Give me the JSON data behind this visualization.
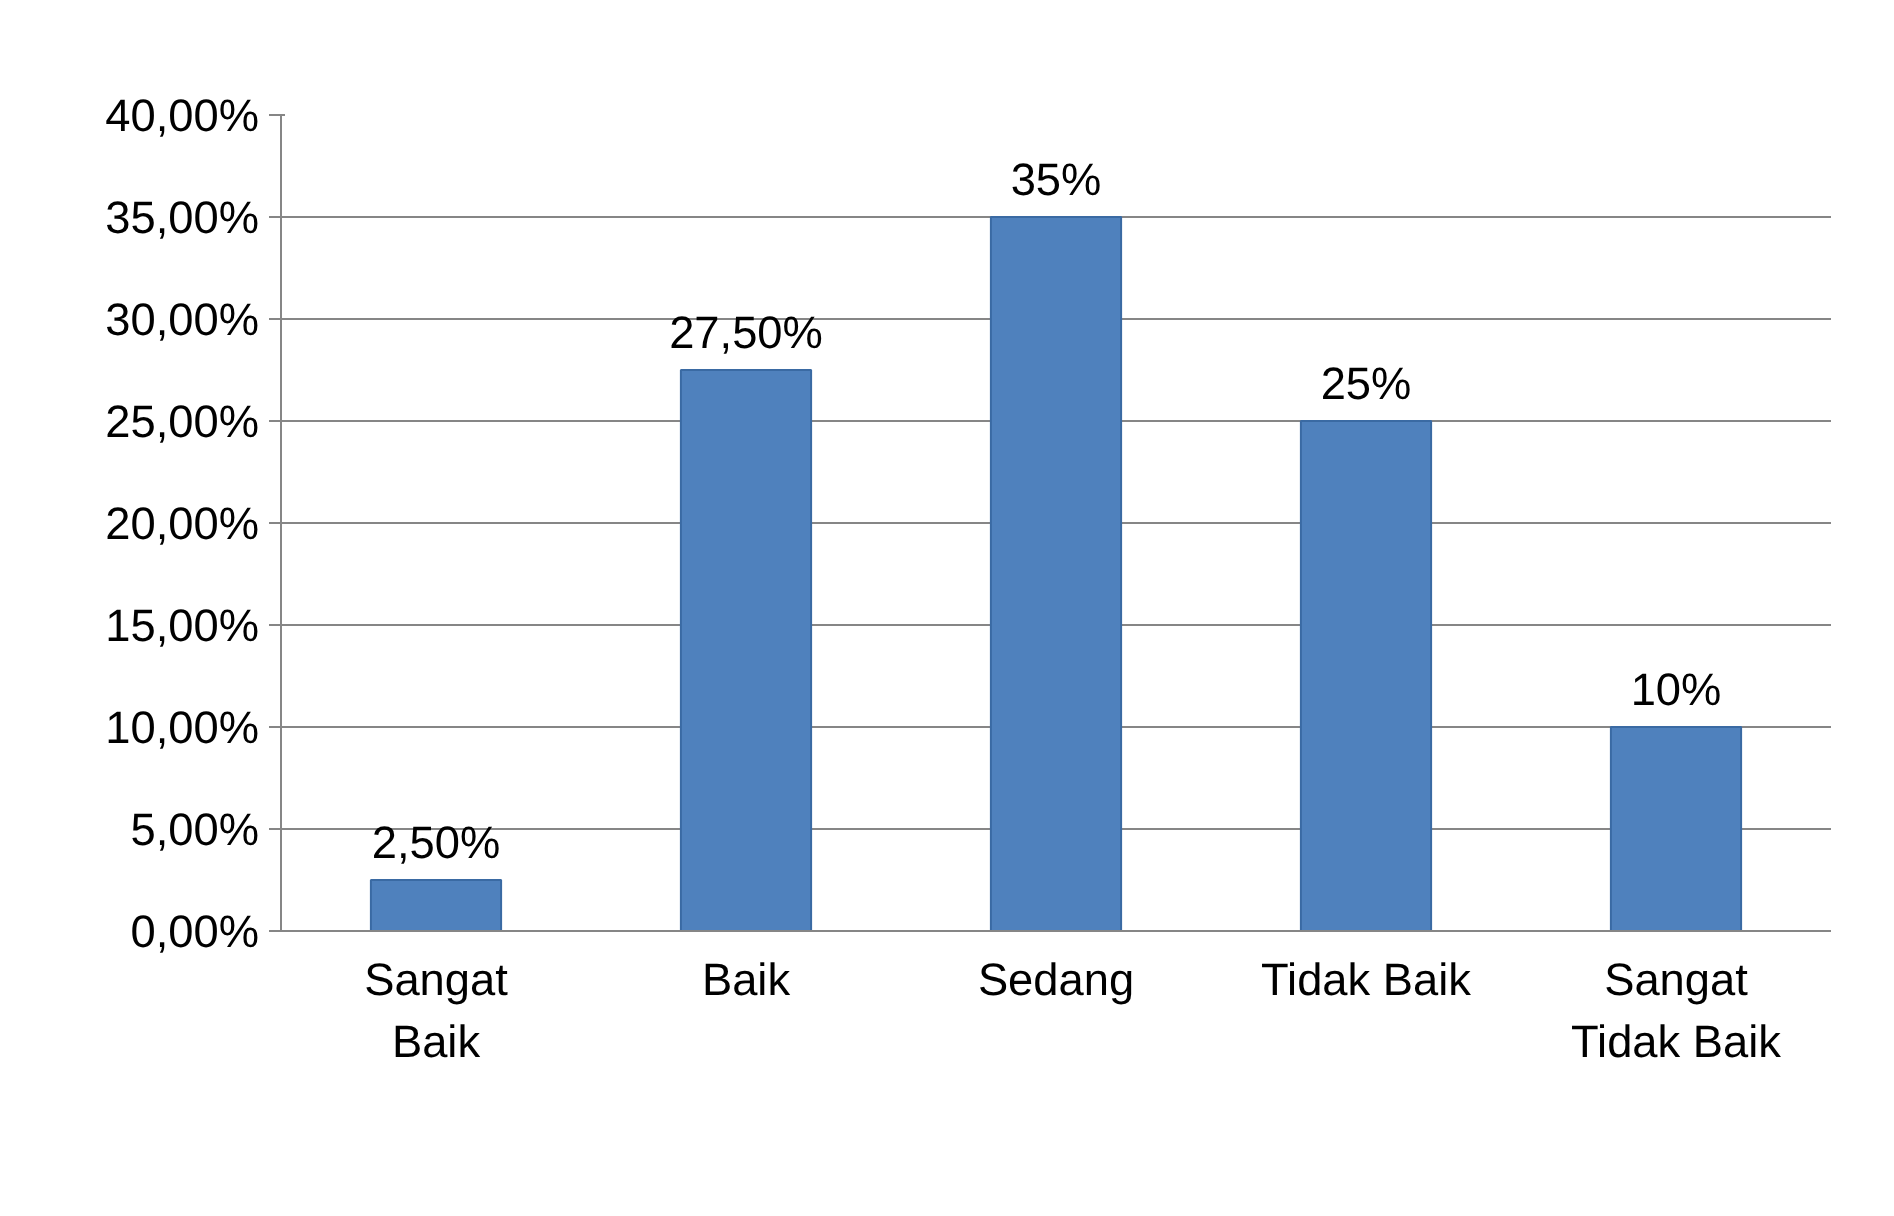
{
  "chart_data": {
    "type": "bar",
    "categories": [
      "Sangat Baik",
      "Baik",
      "Sedang",
      "Tidak Baik",
      "Sangat Tidak Baik"
    ],
    "values": [
      2.5,
      27.5,
      35,
      25,
      10
    ],
    "value_labels": [
      "2,50%",
      "27,50%",
      "35%",
      "25%",
      "10%"
    ],
    "color": "#4f81bd",
    "ylim": [
      0,
      40
    ],
    "yticks": [
      {
        "value": 0,
        "label": "0,00%"
      },
      {
        "value": 5,
        "label": "5,00%"
      },
      {
        "value": 10,
        "label": "10,00%"
      },
      {
        "value": 15,
        "label": "15,00%"
      },
      {
        "value": 20,
        "label": "20,00%"
      },
      {
        "value": 25,
        "label": "25,00%"
      },
      {
        "value": 30,
        "label": "30,00%"
      },
      {
        "value": 35,
        "label": "35,00%"
      },
      {
        "value": 40,
        "label": "40,00%"
      }
    ],
    "grid": "y"
  }
}
